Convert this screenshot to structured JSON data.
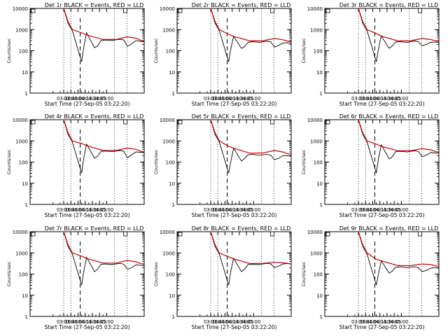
{
  "chart_data": [
    {
      "type": "line",
      "title": "Det 1r BLACK = Events, RED = LLD",
      "ylabel": "Counts/sec",
      "xlabel": "Start Time (27-Sep-05 03:22:20)",
      "x_ticks": [
        "03:30",
        "03:45",
        "04:00",
        "04:15",
        "04:30",
        "04:45",
        "05:00"
      ],
      "y_ticks": [
        "1",
        "10",
        "100",
        "1000",
        "10000"
      ],
      "ylim": [
        1,
        10000
      ],
      "yscale": "log",
      "series": [
        {
          "color": "#000000",
          "x": [
            0,
            0.6,
            1.2,
            2.5,
            2.8,
            3.2,
            4.3,
            4.75,
            5.2,
            5.8,
            6.3,
            6.8,
            7.3,
            7.9,
            8.4,
            8.9,
            9.5,
            10.1,
            10.7,
            11.2
          ],
          "y": [
            10000,
            2000,
            900,
            30,
            140,
            700,
            140,
            170,
            300,
            320,
            310,
            300,
            330,
            350,
            320,
            160,
            210,
            300,
            280,
            270
          ]
        },
        {
          "color": "#cc0000",
          "x": [
            0,
            0.6,
            1.2,
            2.5,
            3.2,
            5.5,
            7.3,
            8.9,
            10.1,
            10.7,
            11.2
          ],
          "y": [
            10000,
            2400,
            1000,
            700,
            560,
            340,
            340,
            460,
            390,
            320,
            280
          ]
        }
      ]
    },
    {
      "type": "line",
      "title": "Det 2r BLACK = Events, RED = LLD",
      "ylabel": "Counts/sec",
      "xlabel": "Start Time (27-Sep-05 03:22:20)",
      "x_ticks": [
        "03:30",
        "03:45",
        "04:00",
        "04:15",
        "04:30",
        "04:45",
        "05:00"
      ],
      "y_ticks": [
        "1",
        "10",
        "100",
        "1000",
        "10000"
      ],
      "ylim": [
        1,
        10000
      ],
      "yscale": "log",
      "series": [
        {
          "color": "#000000",
          "x": [
            0,
            0.6,
            1.2,
            2.5,
            2.8,
            3.2,
            4.3,
            4.75,
            5.2,
            5.8,
            6.3,
            6.8,
            7.3,
            7.9,
            8.4,
            8.9,
            9.5,
            10.1,
            10.7,
            11.2
          ],
          "y": [
            10000,
            2000,
            900,
            30,
            120,
            480,
            130,
            160,
            250,
            270,
            260,
            250,
            270,
            280,
            260,
            150,
            180,
            230,
            240,
            230
          ]
        },
        {
          "color": "#cc0000",
          "x": [
            0,
            0.6,
            1.2,
            2.5,
            3.2,
            5.5,
            7.3,
            8.9,
            10.1,
            10.7,
            11.2
          ],
          "y": [
            10000,
            2400,
            1000,
            600,
            480,
            290,
            300,
            380,
            330,
            290,
            270
          ]
        }
      ]
    },
    {
      "type": "line",
      "title": "Det 3r BLACK = Events, RED = LLD",
      "ylabel": "Counts/sec",
      "xlabel": "Start Time (27-Sep-05 03:22:20)",
      "x_ticks": [
        "03:30",
        "03:45",
        "04:00",
        "04:15",
        "04:30",
        "04:45",
        "05:00"
      ],
      "y_ticks": [
        "1",
        "10",
        "100",
        "1000",
        "10000"
      ],
      "ylim": [
        1,
        10000
      ],
      "yscale": "log",
      "series": [
        {
          "color": "#000000",
          "x": [
            0,
            0.6,
            1.2,
            2.5,
            2.8,
            3.2,
            4.3,
            4.75,
            5.2,
            5.8,
            6.3,
            6.8,
            7.3,
            7.9,
            8.4,
            8.9,
            9.5,
            10.1,
            10.7,
            11.2
          ],
          "y": [
            10000,
            2000,
            900,
            30,
            120,
            500,
            130,
            170,
            260,
            270,
            260,
            250,
            270,
            290,
            270,
            170,
            200,
            250,
            260,
            250
          ]
        },
        {
          "color": "#cc0000",
          "x": [
            0,
            0.6,
            1.2,
            2.5,
            3.2,
            5.5,
            7.3,
            8.9,
            10.1,
            10.7,
            11.2
          ],
          "y": [
            10000,
            2400,
            1000,
            650,
            500,
            290,
            300,
            380,
            340,
            300,
            280
          ]
        }
      ]
    },
    {
      "type": "line",
      "title": "Det 4r BLACK = Events, RED = LLD",
      "ylabel": "Counts/sec",
      "xlabel": "Start Time (27-Sep-05 03:22:20)",
      "x_ticks": [
        "03:30",
        "03:45",
        "04:00",
        "04:15",
        "04:30",
        "04:45",
        "05:00"
      ],
      "y_ticks": [
        "1",
        "10",
        "100",
        "1000",
        "10000"
      ],
      "ylim": [
        1,
        10000
      ],
      "yscale": "log",
      "series": [
        {
          "color": "#000000",
          "x": [
            0,
            0.6,
            1.2,
            2.5,
            2.8,
            3.2,
            4.3,
            4.75,
            5.2,
            5.8,
            6.3,
            6.8,
            7.3,
            7.9,
            8.4,
            8.9,
            9.5,
            10.1,
            10.7,
            11.2
          ],
          "y": [
            10000,
            2000,
            900,
            30,
            150,
            700,
            150,
            190,
            320,
            330,
            320,
            310,
            330,
            350,
            320,
            160,
            220,
            300,
            290,
            280
          ]
        },
        {
          "color": "#cc0000",
          "x": [
            0,
            0.6,
            1.2,
            2.5,
            3.2,
            5.5,
            7.3,
            8.9,
            10.1,
            10.7,
            11.2
          ],
          "y": [
            10000,
            2400,
            1000,
            750,
            600,
            350,
            350,
            460,
            400,
            330,
            300
          ]
        }
      ]
    },
    {
      "type": "line",
      "title": "Det 5r BLACK = Events, RED = LLD",
      "ylabel": "Counts/sec",
      "xlabel": "Start Time (27-Sep-05 03:22:20)",
      "x_ticks": [
        "03:30",
        "03:45",
        "04:00",
        "04:15",
        "04:30",
        "04:45",
        "05:00"
      ],
      "y_ticks": [
        "1",
        "10",
        "100",
        "1000",
        "10000"
      ],
      "ylim": [
        1,
        10000
      ],
      "yscale": "log",
      "series": [
        {
          "color": "#000000",
          "x": [
            0,
            0.6,
            1.2,
            2.5,
            2.8,
            3.2,
            4.3,
            4.75,
            5.2,
            5.8,
            6.3,
            6.8,
            7.3,
            7.9,
            8.4,
            8.9,
            9.5,
            10.1,
            10.7,
            11.2
          ],
          "y": [
            10000,
            2000,
            900,
            30,
            100,
            450,
            110,
            150,
            220,
            230,
            220,
            210,
            220,
            230,
            210,
            130,
            150,
            200,
            200,
            190
          ]
        },
        {
          "color": "#cc0000",
          "x": [
            0,
            0.6,
            1.2,
            2.5,
            3.2,
            5.5,
            7.3,
            8.9,
            10.1,
            10.7,
            11.2
          ],
          "y": [
            10000,
            2400,
            1000,
            550,
            450,
            260,
            270,
            350,
            300,
            250,
            230
          ]
        }
      ]
    },
    {
      "type": "line",
      "title": "Det 6r BLACK = Events, RED = LLD",
      "ylabel": "Counts/sec",
      "xlabel": "Start Time (27-Sep-05 03:22:20)",
      "x_ticks": [
        "03:30",
        "03:45",
        "04:00",
        "04:15",
        "04:30",
        "04:45",
        "05:00"
      ],
      "y_ticks": [
        "1",
        "10",
        "100",
        "1000",
        "10000"
      ],
      "ylim": [
        1,
        10000
      ],
      "yscale": "log",
      "series": [
        {
          "color": "#000000",
          "x": [
            0,
            0.6,
            1.2,
            2.5,
            2.8,
            3.2,
            4.3,
            4.75,
            5.2,
            5.8,
            6.3,
            6.8,
            7.3,
            7.9,
            8.4,
            8.9,
            9.5,
            10.1,
            10.7,
            11.2
          ],
          "y": [
            10000,
            2000,
            900,
            30,
            140,
            650,
            140,
            180,
            310,
            320,
            310,
            300,
            320,
            340,
            310,
            180,
            210,
            280,
            270,
            260
          ]
        },
        {
          "color": "#cc0000",
          "x": [
            0,
            0.6,
            1.2,
            2.5,
            3.2,
            5.5,
            7.3,
            8.9,
            10.1,
            10.7,
            11.2
          ],
          "y": [
            10000,
            2400,
            1000,
            700,
            560,
            340,
            340,
            430,
            380,
            320,
            290
          ]
        }
      ]
    },
    {
      "type": "line",
      "title": "Det 7r BLACK = Events, RED = LLD",
      "ylabel": "Counts/sec",
      "xlabel": "Start Time (27-Sep-05 03:22:20)",
      "x_ticks": [
        "03:30",
        "03:45",
        "04:00",
        "04:15",
        "04:30",
        "04:45",
        "05:00"
      ],
      "y_ticks": [
        "1",
        "10",
        "100",
        "1000",
        "10000"
      ],
      "ylim": [
        1,
        10000
      ],
      "yscale": "log",
      "series": [
        {
          "color": "#000000",
          "x": [
            0,
            0.6,
            1.2,
            2.5,
            2.8,
            3.2,
            4.3,
            4.75,
            5.2,
            5.8,
            6.3,
            6.8,
            7.3,
            7.9,
            8.4,
            8.9,
            9.5,
            10.1,
            10.7,
            11.2
          ],
          "y": [
            10000,
            2000,
            900,
            30,
            130,
            620,
            130,
            170,
            290,
            300,
            290,
            280,
            300,
            320,
            290,
            170,
            200,
            270,
            260,
            250
          ]
        },
        {
          "color": "#cc0000",
          "x": [
            0,
            0.6,
            1.2,
            2.5,
            3.2,
            5.5,
            7.3,
            8.9,
            10.1,
            10.7,
            11.2
          ],
          "y": [
            10000,
            2400,
            1000,
            700,
            550,
            330,
            330,
            440,
            380,
            320,
            290
          ]
        }
      ]
    },
    {
      "type": "line",
      "title": "Det 8r BLACK = Events, RED = LLD",
      "ylabel": "Counts/sec",
      "xlabel": "Start Time (27-Sep-05 03:22:20)",
      "x_ticks": [
        "03:30",
        "03:45",
        "04:00",
        "04:15",
        "04:30",
        "04:45",
        "05:00"
      ],
      "y_ticks": [
        "1",
        "10",
        "100",
        "1000",
        "10000"
      ],
      "ylim": [
        1,
        10000
      ],
      "yscale": "log",
      "series": [
        {
          "color": "#000000",
          "x": [
            0,
            0.6,
            1.2,
            2.5,
            2.8,
            3.2,
            4.3,
            4.75,
            5.2,
            5.8,
            6.3,
            6.8,
            7.3,
            7.9,
            8.4,
            8.9,
            9.5,
            10.1,
            10.7,
            11.2
          ],
          "y": [
            10000,
            2000,
            900,
            30,
            130,
            560,
            130,
            170,
            280,
            290,
            280,
            280,
            300,
            320,
            300,
            200,
            240,
            300,
            310,
            300
          ]
        },
        {
          "color": "#cc0000",
          "x": [
            0,
            0.6,
            1.2,
            2.5,
            3.2,
            5.5,
            7.3,
            8.9,
            10.1,
            10.7,
            11.2
          ],
          "y": [
            10000,
            2400,
            1000,
            650,
            520,
            310,
            320,
            360,
            340,
            320,
            300
          ]
        }
      ]
    },
    {
      "type": "line",
      "title": "Det 9r BLACK = Events, RED = LLD",
      "ylabel": "Counts/sec",
      "xlabel": "Start Time (27-Sep-05 03:22:20)",
      "x_ticks": [
        "03:30",
        "03:45",
        "04:00",
        "04:15",
        "04:30",
        "04:45",
        "05:00"
      ],
      "y_ticks": [
        "1",
        "10",
        "100",
        "1000",
        "10000"
      ],
      "ylim": [
        1,
        10000
      ],
      "yscale": "log",
      "series": [
        {
          "color": "#000000",
          "x": [
            0,
            0.6,
            1.2,
            2.5,
            2.8,
            3.2,
            4.3,
            4.75,
            5.2,
            5.8,
            6.3,
            6.8,
            7.3,
            7.9,
            8.4,
            8.9,
            9.5,
            10.1,
            10.7,
            11.2
          ],
          "y": [
            10000,
            2000,
            900,
            30,
            100,
            420,
            110,
            140,
            210,
            220,
            210,
            200,
            210,
            220,
            200,
            130,
            150,
            190,
            200,
            190
          ]
        },
        {
          "color": "#cc0000",
          "x": [
            0,
            0.6,
            1.2,
            2.5,
            3.2,
            5.5,
            7.3,
            8.9,
            10.1,
            10.7,
            11.2
          ],
          "y": [
            10000,
            2400,
            1000,
            500,
            420,
            250,
            250,
            300,
            280,
            250,
            230
          ]
        }
      ]
    }
  ]
}
